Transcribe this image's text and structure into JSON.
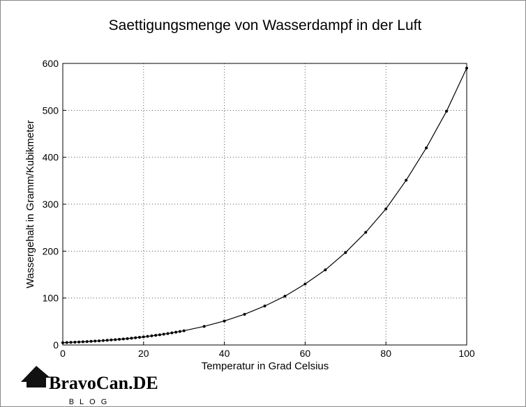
{
  "chart_data": {
    "type": "line",
    "title": "Saettigungsmenge von Wasserdampf in der Luft",
    "x_label": "Temperatur in Grad Celsius",
    "y_label": "Wassergehalt in Gramm/Kubikmeter",
    "x": [
      0,
      1,
      2,
      3,
      4,
      5,
      6,
      7,
      8,
      9,
      10,
      11,
      12,
      13,
      14,
      15,
      16,
      17,
      18,
      19,
      20,
      21,
      22,
      23,
      24,
      25,
      26,
      27,
      28,
      29,
      30,
      35,
      40,
      45,
      50,
      55,
      60,
      65,
      70,
      75,
      80,
      85,
      90,
      95,
      100
    ],
    "series": [
      {
        "name": "Wassergehalt",
        "color": "#000000",
        "values": [
          4.8,
          5.2,
          5.6,
          6.0,
          6.4,
          6.8,
          7.3,
          7.8,
          8.3,
          8.8,
          9.4,
          10.0,
          10.7,
          11.4,
          12.1,
          12.8,
          13.6,
          14.5,
          15.4,
          16.3,
          17.3,
          18.3,
          19.4,
          20.6,
          21.8,
          23.0,
          24.4,
          25.8,
          27.2,
          28.7,
          30.3,
          39.6,
          51.1,
          65.4,
          83.0,
          104,
          130,
          160,
          197,
          240,
          290,
          351,
          420,
          498,
          590
        ]
      }
    ],
    "xlim": [
      0,
      100
    ],
    "xticks": [
      0,
      20,
      40,
      60,
      80,
      100
    ],
    "ylim": [
      0,
      600
    ],
    "yticks": [
      0,
      100,
      200,
      300,
      400,
      500,
      600
    ],
    "grid": true
  },
  "watermark": {
    "name": "BravoCan.DE",
    "tagline": "BLOG"
  }
}
